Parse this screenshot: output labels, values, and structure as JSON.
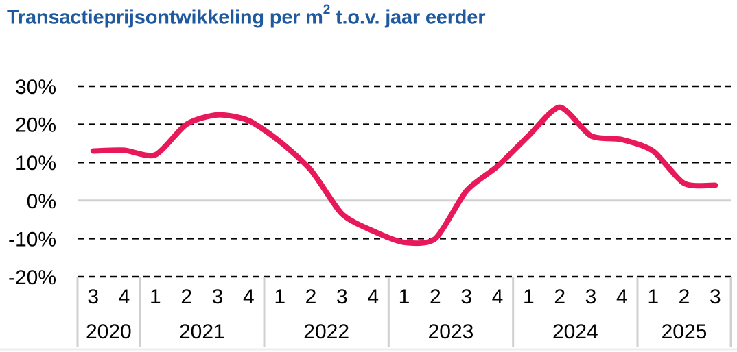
{
  "chart_data": {
    "type": "line",
    "title": "Transactieprijsontwikkeling per m",
    "title_superscript": "2",
    "title_suffix": " t.o.v. jaar eerder",
    "ylim": [
      -20,
      30
    ],
    "yticks": [
      "30%",
      "20%",
      "10%",
      "0%",
      "-10%",
      "-20%"
    ],
    "ytick_values": [
      30,
      20,
      10,
      0,
      -10,
      -20
    ],
    "grid": "dashed horizontal",
    "categories": [
      "3",
      "4",
      "1",
      "2",
      "3",
      "4",
      "1",
      "2",
      "3",
      "4",
      "1",
      "2",
      "3",
      "4",
      "1",
      "2",
      "3",
      "4",
      "1",
      "2",
      "3"
    ],
    "years": [
      {
        "label": "2020",
        "count": 2
      },
      {
        "label": "2021",
        "count": 4
      },
      {
        "label": "2022",
        "count": 4
      },
      {
        "label": "2023",
        "count": 4
      },
      {
        "label": "2024",
        "count": 4
      },
      {
        "label": "2025",
        "count": 3
      }
    ],
    "series": [
      {
        "color": "#e8195a",
        "values": [
          13,
          13.2,
          12,
          20,
          22.5,
          21,
          15.5,
          8,
          -3.5,
          -8,
          -11,
          -10,
          2.5,
          9,
          17,
          24.5,
          17,
          16,
          13,
          4.5,
          4
        ]
      }
    ]
  }
}
